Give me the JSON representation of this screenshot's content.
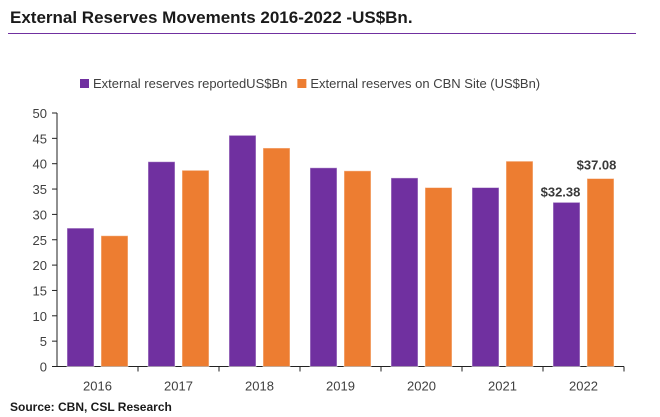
{
  "chart_data": {
    "type": "bar",
    "title": "External Reserves Movements 2016-2022 -US$Bn.",
    "source": "Source: CBN, CSL Research",
    "categories": [
      "2016",
      "2017",
      "2018",
      "2019",
      "2020",
      "2021",
      "2022"
    ],
    "series": [
      {
        "name": "External reserves reportedUS$Bn",
        "color": "#7030a0",
        "values": [
          27.3,
          40.4,
          45.6,
          39.2,
          37.2,
          35.3,
          32.38
        ]
      },
      {
        "name": "External reserves on CBN Site (US$Bn)",
        "color": "#ed7d31",
        "values": [
          25.8,
          38.7,
          43.1,
          38.6,
          35.3,
          40.5,
          37.08
        ]
      }
    ],
    "data_labels": [
      {
        "category": "2022",
        "series": 0,
        "text": "$32.38"
      },
      {
        "category": "2022",
        "series": 1,
        "text": "$37.08"
      }
    ],
    "ylim": [
      0,
      50
    ],
    "yticks": [
      0,
      5,
      10,
      15,
      20,
      25,
      30,
      35,
      40,
      45,
      50
    ],
    "grid": false,
    "legend": "top"
  }
}
